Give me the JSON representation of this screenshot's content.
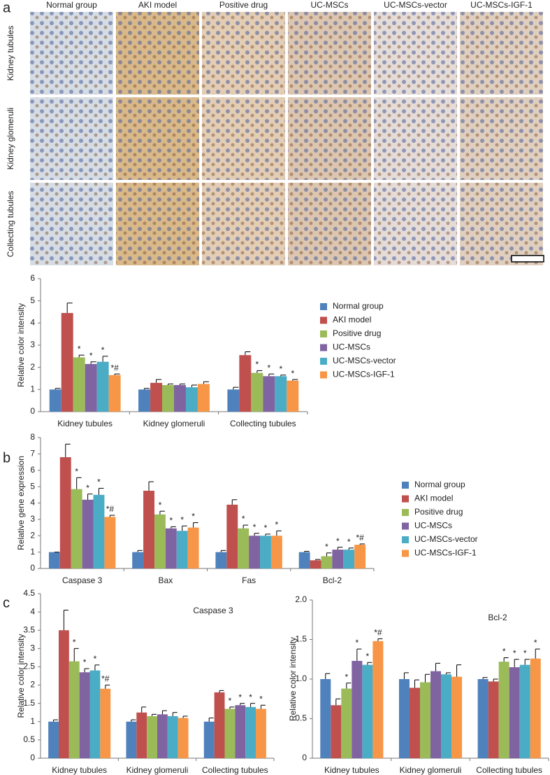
{
  "panel_labels": [
    "a",
    "b",
    "c"
  ],
  "micrographs": {
    "columns": [
      "Normal group",
      "AKI model",
      "Positive drug",
      "UC-MSCs",
      "UC-MSCs-vector",
      "UC-MSCs-IGF-1"
    ],
    "rows": [
      "Kidney tubules",
      "Kidney glomeruli",
      "Collecting tubules"
    ]
  },
  "chart_data": [
    {
      "type": "bar",
      "ylabel": "Relative color intensity",
      "legend": "right",
      "categories": [
        "Kidney tubules",
        "Kidney glomeruli",
        "Collecting tubules"
      ],
      "ylim": [
        0,
        6
      ],
      "yticks": [
        0,
        1,
        2,
        3,
        4,
        5,
        6
      ],
      "series": [
        {
          "name": "Normal group",
          "color": "#4f81bd",
          "values": [
            1,
            1,
            1
          ],
          "errors": [
            0.05,
            0.05,
            0.1
          ],
          "markers": [
            null,
            null,
            null
          ]
        },
        {
          "name": "AKI model",
          "color": "#c0504d",
          "values": [
            4.45,
            1.3,
            2.55
          ],
          "errors": [
            0.45,
            0.15,
            0.15
          ],
          "markers": [
            null,
            null,
            null
          ]
        },
        {
          "name": "Positive drug",
          "color": "#9bbb59",
          "values": [
            2.45,
            1.2,
            1.75
          ],
          "errors": [
            0.1,
            0.05,
            0.1
          ],
          "markers": [
            "*",
            null,
            "*"
          ]
        },
        {
          "name": "UC-MSCs",
          "color": "#8064a2",
          "values": [
            2.15,
            1.2,
            1.6
          ],
          "errors": [
            0.1,
            0.05,
            0.1
          ],
          "markers": [
            "*",
            null,
            "*"
          ]
        },
        {
          "name": "UC-MSCs-vector",
          "color": "#4bacc6",
          "values": [
            2.25,
            1.1,
            1.6
          ],
          "errors": [
            0.25,
            0.1,
            0.05
          ],
          "markers": [
            "*",
            null,
            "*"
          ]
        },
        {
          "name": "UC-MSCs-IGF-1",
          "color": "#f79646",
          "values": [
            1.65,
            1.25,
            1.4
          ],
          "errors": [
            0.05,
            0.1,
            0.05
          ],
          "markers": [
            "*#",
            null,
            "*"
          ]
        }
      ]
    },
    {
      "type": "bar",
      "ylabel": "Relative gene expression",
      "legend": "right",
      "categories": [
        "Caspase 3",
        "Bax",
        "Fas",
        "Bcl-2"
      ],
      "ylim": [
        0,
        8
      ],
      "yticks": [
        0,
        1,
        2,
        3,
        4,
        5,
        6,
        7,
        8
      ],
      "series": [
        {
          "name": "Normal group",
          "color": "#4f81bd",
          "values": [
            1,
            1,
            1,
            1
          ],
          "errors": [
            0,
            0.1,
            0.1,
            0.05
          ],
          "markers": [
            null,
            null,
            null,
            null
          ]
        },
        {
          "name": "AKI model",
          "color": "#c0504d",
          "values": [
            6.8,
            4.75,
            3.9,
            0.5
          ],
          "errors": [
            0.8,
            0.55,
            0.3,
            0.05
          ],
          "markers": [
            null,
            null,
            null,
            null
          ]
        },
        {
          "name": "Positive drug",
          "color": "#9bbb59",
          "values": [
            4.85,
            3.3,
            2.45,
            0.75
          ],
          "errors": [
            0.7,
            0.2,
            0.2,
            0.2
          ],
          "markers": [
            "*",
            "*",
            "*",
            "*"
          ]
        },
        {
          "name": "UC-MSCs",
          "color": "#8064a2",
          "values": [
            4.2,
            2.45,
            2.0,
            1.15
          ],
          "errors": [
            0.35,
            0.1,
            0.15,
            0.15
          ],
          "markers": [
            "*",
            "*",
            "*",
            "*"
          ]
        },
        {
          "name": "UC-MSCs-vector",
          "color": "#4bacc6",
          "values": [
            4.5,
            2.3,
            2.0,
            1.15
          ],
          "errors": [
            0.4,
            0.3,
            0.1,
            0.1
          ],
          "markers": [
            "*",
            "*",
            "*",
            "*"
          ]
        },
        {
          "name": "UC-MSCs-IGF-1",
          "color": "#f79646",
          "values": [
            3.15,
            2.5,
            2.0,
            1.45
          ],
          "errors": [
            0.1,
            0.3,
            0.3,
            0.05
          ],
          "markers": [
            "*#",
            "*",
            "*",
            "*#"
          ]
        }
      ]
    },
    {
      "type": "bar",
      "ylabel": "Relative color intensity",
      "annotation": "Caspase 3",
      "categories": [
        "Kidney tubules",
        "Kidney glomeruli",
        "Collecting tubules"
      ],
      "ylim": [
        0,
        4.5
      ],
      "yticks": [
        0,
        0.5,
        1,
        1.5,
        2,
        2.5,
        3,
        3.5,
        4,
        4.5
      ],
      "series": [
        {
          "name": "Normal group",
          "color": "#4f81bd",
          "values": [
            1,
            1,
            1
          ],
          "errors": [
            0.05,
            0.05,
            0.1
          ],
          "markers": [
            null,
            null,
            null
          ]
        },
        {
          "name": "AKI model",
          "color": "#c0504d",
          "values": [
            3.5,
            1.25,
            1.8
          ],
          "errors": [
            0.55,
            0.15,
            0.05
          ],
          "markers": [
            null,
            null,
            null
          ]
        },
        {
          "name": "Positive drug",
          "color": "#9bbb59",
          "values": [
            2.65,
            1.15,
            1.35
          ],
          "errors": [
            0.35,
            0.05,
            0.05
          ],
          "markers": [
            "*",
            null,
            "*"
          ]
        },
        {
          "name": "UC-MSCs",
          "color": "#8064a2",
          "values": [
            2.35,
            1.2,
            1.45
          ],
          "errors": [
            0.1,
            0.1,
            0.05
          ],
          "markers": [
            "*",
            null,
            "*"
          ]
        },
        {
          "name": "UC-MSCs-vector",
          "color": "#4bacc6",
          "values": [
            2.4,
            1.15,
            1.4
          ],
          "errors": [
            0.15,
            0.1,
            0.1
          ],
          "markers": [
            "*",
            null,
            "*"
          ]
        },
        {
          "name": "UC-MSCs-IGF-1",
          "color": "#f79646",
          "values": [
            1.9,
            1.1,
            1.35
          ],
          "errors": [
            0.1,
            0.05,
            0.1
          ],
          "markers": [
            "*#",
            null,
            "*"
          ]
        }
      ]
    },
    {
      "type": "bar",
      "ylabel": "Relative color intensity",
      "annotation": "Bcl-2",
      "categories": [
        "Kidney tubules",
        "Kidney glomeruli",
        "Collecting tubules"
      ],
      "ylim": [
        0,
        2
      ],
      "yticks": [
        0,
        0.5,
        {
          "value": 1,
          "label": "1.0"
        },
        1.5,
        {
          "value": 2,
          "label": "2.0"
        }
      ],
      "series": [
        {
          "name": "Normal group",
          "color": "#4f81bd",
          "values": [
            1.0,
            1.0,
            1.0
          ],
          "errors": [
            0.07,
            0.08,
            0.02
          ],
          "markers": [
            null,
            null,
            null
          ]
        },
        {
          "name": "AKI model",
          "color": "#c0504d",
          "values": [
            0.67,
            0.89,
            0.97
          ],
          "errors": [
            0.08,
            0.1,
            0.03
          ],
          "markers": [
            null,
            null,
            null
          ]
        },
        {
          "name": "Positive drug",
          "color": "#9bbb59",
          "values": [
            0.88,
            0.96,
            1.22
          ],
          "errors": [
            0.07,
            0.1,
            0.05
          ],
          "markers": [
            "*",
            null,
            "*"
          ]
        },
        {
          "name": "UC-MSCs",
          "color": "#8064a2",
          "values": [
            1.23,
            1.1,
            1.15
          ],
          "errors": [
            0.15,
            0.1,
            0.1
          ],
          "markers": [
            "*",
            null,
            "*"
          ]
        },
        {
          "name": "UC-MSCs-vector",
          "color": "#4bacc6",
          "values": [
            1.18,
            1.06,
            1.18
          ],
          "errors": [
            0.03,
            0.02,
            0.07
          ],
          "markers": [
            "*",
            null,
            "*"
          ]
        },
        {
          "name": "UC-MSCs-IGF-1",
          "color": "#f79646",
          "values": [
            1.48,
            1.03,
            1.26
          ],
          "errors": [
            0.03,
            0.15,
            0.12
          ],
          "markers": [
            "*#",
            null,
            "*"
          ]
        }
      ]
    }
  ]
}
